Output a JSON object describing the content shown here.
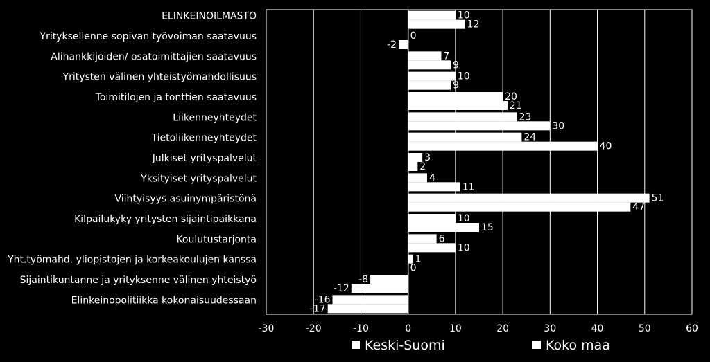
{
  "chart_data": {
    "type": "bar",
    "orientation": "horizontal",
    "categories": [
      "ELINKEINOILMASTO",
      "Yrityksellenne sopivan työvoiman saatavuus",
      "Alihankkijoiden/ osatoimittajien saatavuus",
      "Yritysten välinen yhteistyömahdollisuus",
      "Toimitilojen ja tonttien saatavuus",
      "Liikenneyhteydet",
      "Tietoliikenneyhteydet",
      "Julkiset yrityspalvelut",
      "Yksityiset yrityspalvelut",
      "Viihtyisyys asuinympäristönä",
      "Kilpailukyky yritysten sijaintipaikkana",
      "Koulutustarjonta",
      "Yht.työmahd. yliopistojen ja korkeakoulujen kanssa",
      "Sijaintikuntanne ja yrityksenne välinen yhteistyö",
      "Elinkeinopolitiikka kokonaisuudessaan"
    ],
    "series": [
      {
        "name": "Keski-Suomi",
        "values": [
          10,
          0,
          7,
          10,
          20,
          23,
          24,
          3,
          4,
          51,
          10,
          6,
          1,
          -8,
          -16
        ],
        "color": "#ffffff"
      },
      {
        "name": "Koko maa",
        "values": [
          12,
          -2,
          9,
          9,
          21,
          30,
          40,
          2,
          11,
          47,
          15,
          10,
          0,
          -12,
          -17
        ],
        "color": "#ffffff"
      }
    ],
    "xlim": [
      -30,
      60
    ],
    "xticks": [
      "-30",
      "-20",
      "-10",
      "0",
      "10",
      "20",
      "30",
      "40",
      "50",
      "60"
    ],
    "grid": "vertical",
    "legend": "bottom",
    "title": "",
    "xlabel": "",
    "ylabel": ""
  }
}
